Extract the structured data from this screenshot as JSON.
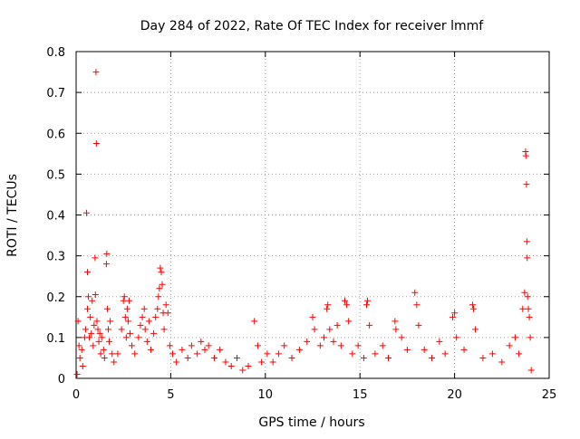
{
  "chart_data": {
    "type": "scatter",
    "title": "Day 284 of 2022, Rate Of TEC Index for receiver lmmf",
    "xlabel": "GPS time / hours",
    "ylabel": "ROTI / TECUs",
    "xlim": [
      0,
      25
    ],
    "ylim": [
      0,
      0.8
    ],
    "x_ticks": [
      0,
      5,
      10,
      15,
      20,
      25
    ],
    "x_tick_labels": [
      "0",
      "5",
      "10",
      "15",
      "20",
      "25"
    ],
    "y_ticks": [
      0,
      0.1,
      0.2,
      0.3,
      0.4,
      0.5,
      0.6,
      0.7,
      0.8
    ],
    "y_tick_labels": [
      "0",
      "0.1",
      "0.2",
      "0.3",
      "0.4",
      "0.5",
      "0.6",
      "0.7",
      "0.8"
    ],
    "grid": true,
    "marker": "+",
    "color": "#ff0000",
    "series": [
      {
        "points": [
          [
            0.05,
            0.01
          ],
          [
            0.1,
            0.14
          ],
          [
            0.15,
            0.08
          ],
          [
            0.2,
            0.05
          ],
          [
            0.3,
            0.07
          ],
          [
            0.35,
            0.03
          ],
          [
            0.45,
            0.1
          ],
          [
            0.5,
            0.12
          ],
          [
            0.55,
            0.405
          ],
          [
            0.6,
            0.26
          ],
          [
            0.6,
            0.17
          ],
          [
            0.65,
            0.2
          ],
          [
            0.7,
            0.1
          ],
          [
            0.75,
            0.15
          ],
          [
            0.8,
            0.11
          ],
          [
            0.85,
            0.19
          ],
          [
            0.9,
            0.08
          ],
          [
            0.95,
            0.13
          ],
          [
            1.0,
            0.295
          ],
          [
            1.02,
            0.205
          ],
          [
            1.05,
            0.75
          ],
          [
            1.07,
            0.575
          ],
          [
            1.1,
            0.14
          ],
          [
            1.15,
            0.12
          ],
          [
            1.2,
            0.09
          ],
          [
            1.25,
            0.11
          ],
          [
            1.3,
            0.06
          ],
          [
            1.35,
            0.1
          ],
          [
            1.45,
            0.07
          ],
          [
            1.5,
            0.05
          ],
          [
            1.6,
            0.28
          ],
          [
            1.62,
            0.305
          ],
          [
            1.65,
            0.17
          ],
          [
            1.7,
            0.12
          ],
          [
            1.75,
            0.09
          ],
          [
            1.8,
            0.14
          ],
          [
            1.9,
            0.06
          ],
          [
            2.0,
            0.04
          ],
          [
            2.2,
            0.06
          ],
          [
            2.4,
            0.12
          ],
          [
            2.5,
            0.19
          ],
          [
            2.55,
            0.2
          ],
          [
            2.6,
            0.15
          ],
          [
            2.65,
            0.1
          ],
          [
            2.7,
            0.17
          ],
          [
            2.75,
            0.14
          ],
          [
            2.8,
            0.19
          ],
          [
            2.85,
            0.11
          ],
          [
            2.95,
            0.08
          ],
          [
            3.1,
            0.06
          ],
          [
            3.3,
            0.1
          ],
          [
            3.4,
            0.13
          ],
          [
            3.5,
            0.15
          ],
          [
            3.6,
            0.17
          ],
          [
            3.65,
            0.12
          ],
          [
            3.75,
            0.09
          ],
          [
            3.85,
            0.14
          ],
          [
            3.95,
            0.07
          ],
          [
            4.1,
            0.11
          ],
          [
            4.2,
            0.15
          ],
          [
            4.3,
            0.17
          ],
          [
            4.35,
            0.2
          ],
          [
            4.4,
            0.22
          ],
          [
            4.45,
            0.27
          ],
          [
            4.5,
            0.26
          ],
          [
            4.55,
            0.23
          ],
          [
            4.6,
            0.16
          ],
          [
            4.65,
            0.12
          ],
          [
            4.75,
            0.18
          ],
          [
            4.85,
            0.16
          ],
          [
            4.95,
            0.08
          ],
          [
            5.1,
            0.06
          ],
          [
            5.3,
            0.04
          ],
          [
            5.6,
            0.07
          ],
          [
            5.9,
            0.05
          ],
          [
            6.1,
            0.08
          ],
          [
            6.4,
            0.06
          ],
          [
            6.6,
            0.09
          ],
          [
            6.8,
            0.07
          ],
          [
            7.0,
            0.08
          ],
          [
            7.3,
            0.05
          ],
          [
            7.6,
            0.07
          ],
          [
            7.9,
            0.04
          ],
          [
            8.2,
            0.03
          ],
          [
            8.5,
            0.05
          ],
          [
            8.8,
            0.02
          ],
          [
            9.1,
            0.03
          ],
          [
            9.42,
            0.14
          ],
          [
            9.6,
            0.08
          ],
          [
            9.8,
            0.04
          ],
          [
            10.1,
            0.06
          ],
          [
            10.4,
            0.04
          ],
          [
            10.7,
            0.06
          ],
          [
            11.0,
            0.08
          ],
          [
            11.4,
            0.05
          ],
          [
            11.8,
            0.07
          ],
          [
            12.2,
            0.09
          ],
          [
            12.5,
            0.15
          ],
          [
            12.6,
            0.12
          ],
          [
            12.9,
            0.08
          ],
          [
            13.1,
            0.1
          ],
          [
            13.25,
            0.17
          ],
          [
            13.3,
            0.18
          ],
          [
            13.4,
            0.12
          ],
          [
            13.6,
            0.09
          ],
          [
            13.8,
            0.13
          ],
          [
            14.0,
            0.08
          ],
          [
            14.2,
            0.19
          ],
          [
            14.3,
            0.18
          ],
          [
            14.4,
            0.14
          ],
          [
            14.6,
            0.06
          ],
          [
            14.9,
            0.08
          ],
          [
            15.2,
            0.05
          ],
          [
            15.35,
            0.18
          ],
          [
            15.4,
            0.19
          ],
          [
            15.5,
            0.13
          ],
          [
            15.8,
            0.06
          ],
          [
            16.2,
            0.08
          ],
          [
            16.5,
            0.05
          ],
          [
            16.85,
            0.14
          ],
          [
            16.9,
            0.12
          ],
          [
            17.2,
            0.1
          ],
          [
            17.5,
            0.07
          ],
          [
            17.9,
            0.21
          ],
          [
            18.0,
            0.18
          ],
          [
            18.1,
            0.13
          ],
          [
            18.4,
            0.07
          ],
          [
            18.8,
            0.05
          ],
          [
            19.2,
            0.09
          ],
          [
            19.5,
            0.06
          ],
          [
            19.9,
            0.15
          ],
          [
            20.0,
            0.16
          ],
          [
            20.1,
            0.1
          ],
          [
            20.5,
            0.07
          ],
          [
            20.95,
            0.18
          ],
          [
            21.0,
            0.17
          ],
          [
            21.1,
            0.12
          ],
          [
            21.5,
            0.05
          ],
          [
            22.0,
            0.06
          ],
          [
            22.5,
            0.04
          ],
          [
            22.9,
            0.08
          ],
          [
            23.2,
            0.1
          ],
          [
            23.4,
            0.06
          ],
          [
            23.6,
            0.17
          ],
          [
            23.7,
            0.21
          ],
          [
            23.75,
            0.555
          ],
          [
            23.77,
            0.545
          ],
          [
            23.8,
            0.475
          ],
          [
            23.82,
            0.335
          ],
          [
            23.84,
            0.295
          ],
          [
            23.86,
            0.2
          ],
          [
            23.9,
            0.17
          ],
          [
            23.95,
            0.15
          ],
          [
            24.0,
            0.1
          ],
          [
            24.05,
            0.02
          ]
        ]
      }
    ]
  }
}
